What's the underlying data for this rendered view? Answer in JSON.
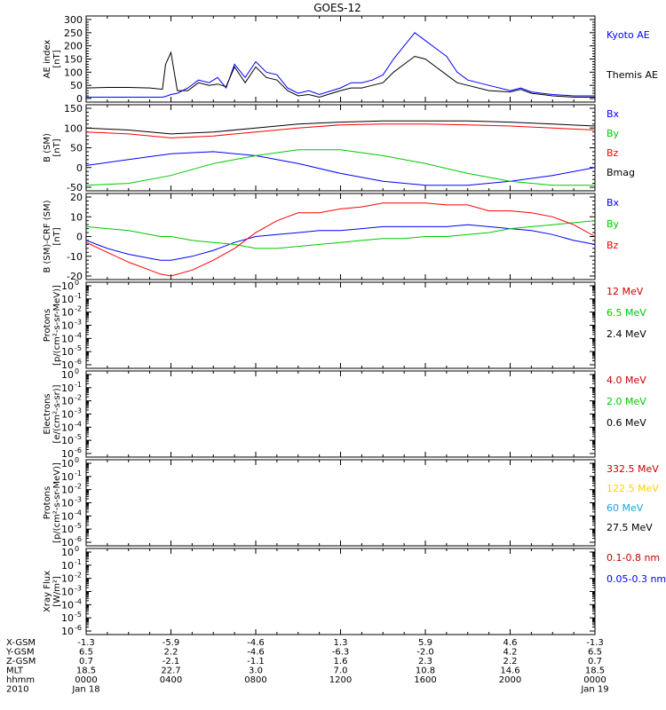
{
  "title": "GOES-12",
  "chart_data": [
    {
      "type": "line",
      "ylabel": "AE index [nT]",
      "ylim": [
        0,
        300
      ],
      "yticks": [
        0,
        50,
        100,
        150,
        200,
        250,
        300
      ],
      "log": false,
      "x_hours": [
        0,
        1,
        2,
        3,
        3.6,
        3.75,
        4,
        4.3,
        4.8,
        5.3,
        5.8,
        6.2,
        6.6,
        7,
        7.5,
        8,
        8.5,
        9,
        9.5,
        10,
        10.5,
        11,
        12,
        12.5,
        13,
        13.5,
        14,
        14.5,
        15,
        15.5,
        16,
        16.5,
        17,
        17.5,
        18,
        19,
        20,
        20.5,
        21,
        21.5,
        22,
        23,
        24
      ],
      "series": [
        {
          "name": "Kyoto AE",
          "color": "#0000ff",
          "values": [
            5,
            5,
            5,
            5,
            5,
            8,
            15,
            20,
            40,
            70,
            60,
            80,
            40,
            130,
            80,
            140,
            100,
            90,
            40,
            20,
            30,
            15,
            40,
            60,
            60,
            70,
            90,
            150,
            200,
            250,
            220,
            190,
            160,
            100,
            70,
            50,
            30,
            40,
            25,
            20,
            15,
            10,
            10
          ]
        },
        {
          "name": "Themis AE",
          "color": "#000000",
          "values": [
            40,
            42,
            42,
            40,
            35,
            130,
            175,
            30,
            30,
            60,
            50,
            55,
            45,
            120,
            60,
            120,
            80,
            70,
            30,
            10,
            15,
            5,
            30,
            40,
            40,
            50,
            60,
            100,
            130,
            160,
            150,
            120,
            90,
            60,
            50,
            30,
            25,
            35,
            20,
            15,
            10,
            5,
            5
          ]
        }
      ]
    },
    {
      "type": "line",
      "ylabel": "B (SM) [nT]",
      "ylim": [
        -50,
        150
      ],
      "yticks": [
        -50,
        0,
        50,
        100,
        150
      ],
      "log": false,
      "x_hours": [
        0,
        2,
        4,
        6,
        8,
        10,
        12,
        14,
        16,
        18,
        20,
        22,
        24
      ],
      "series": [
        {
          "name": "Bx",
          "color": "#0000ff",
          "values": [
            5,
            20,
            35,
            40,
            30,
            10,
            -15,
            -35,
            -45,
            -45,
            -35,
            -20,
            0
          ]
        },
        {
          "name": "By",
          "color": "#00c800",
          "values": [
            -45,
            -40,
            -20,
            10,
            30,
            45,
            45,
            30,
            10,
            -15,
            -35,
            -45,
            -45
          ]
        },
        {
          "name": "Bz",
          "color": "#ff0000",
          "values": [
            90,
            85,
            75,
            80,
            90,
            100,
            108,
            110,
            110,
            108,
            105,
            100,
            95
          ]
        },
        {
          "name": "Bmag",
          "color": "#000000",
          "values": [
            100,
            95,
            85,
            90,
            100,
            110,
            115,
            118,
            118,
            118,
            115,
            110,
            105
          ]
        }
      ]
    },
    {
      "type": "line",
      "ylabel": "B (SM)-CRF (SM) [nT]",
      "ylim": [
        -20,
        20
      ],
      "yticks": [
        -20,
        -10,
        0,
        10,
        20
      ],
      "log": false,
      "x_hours": [
        0,
        1,
        2,
        3,
        3.5,
        4,
        5,
        6,
        7,
        8,
        9,
        10,
        11,
        12,
        13,
        14,
        15,
        16,
        17,
        18,
        19,
        20,
        21,
        22,
        23,
        24
      ],
      "series": [
        {
          "name": "Bx",
          "color": "#0000ff",
          "values": [
            -2,
            -6,
            -9,
            -11,
            -12,
            -12,
            -10,
            -7,
            -3,
            0,
            1,
            2,
            3,
            3,
            4,
            5,
            5,
            5,
            5,
            6,
            5,
            4,
            3,
            1,
            -2,
            -4
          ]
        },
        {
          "name": "By",
          "color": "#00c800",
          "values": [
            5,
            4,
            3,
            1,
            0,
            0,
            -2,
            -3,
            -4,
            -6,
            -6,
            -5,
            -4,
            -3,
            -2,
            -1,
            -1,
            0,
            0,
            1,
            2,
            4,
            5,
            6,
            7,
            8
          ]
        },
        {
          "name": "Bz",
          "color": "#ff0000",
          "values": [
            -3,
            -8,
            -13,
            -17,
            -19,
            -20,
            -17,
            -12,
            -6,
            2,
            8,
            12,
            12,
            14,
            15,
            17,
            17,
            17,
            16,
            16,
            13,
            13,
            12,
            10,
            6,
            0
          ]
        }
      ]
    },
    {
      "type": "line",
      "ylabel": "Protons [p/(cm²-s-sr-MeV)]",
      "ylim": [
        -6,
        0
      ],
      "yticks_exp": [
        -6,
        -5,
        -4,
        -3,
        -2,
        -1,
        0
      ],
      "log": true,
      "series": [
        {
          "name": "12 MeV",
          "color": "#c80000",
          "values": []
        },
        {
          "name": "6.5 MeV",
          "color": "#00c800",
          "values": []
        },
        {
          "name": "2.4 MeV",
          "color": "#000000",
          "values": []
        }
      ]
    },
    {
      "type": "line",
      "ylabel": "Electrons [e/(cm²-s-sr)]",
      "ylim": [
        -6,
        0
      ],
      "yticks_exp": [
        -6,
        -5,
        -4,
        -3,
        -2,
        -1,
        0
      ],
      "log": true,
      "series": [
        {
          "name": "4.0 MeV",
          "color": "#c80000",
          "values": []
        },
        {
          "name": "2.0 MeV",
          "color": "#00c800",
          "values": []
        },
        {
          "name": "0.6 MeV",
          "color": "#000000",
          "values": []
        }
      ]
    },
    {
      "type": "line",
      "ylabel": "Protons [p/(cm²-s-sr-MeV)]",
      "ylim": [
        -6,
        0
      ],
      "yticks_exp": [
        -6,
        -5,
        -4,
        -3,
        -2,
        -1,
        0
      ],
      "log": true,
      "series": [
        {
          "name": "332.5 MeV",
          "color": "#c80000",
          "values": []
        },
        {
          "name": "122.5 MeV",
          "color": "#ffd200",
          "values": []
        },
        {
          "name": "60 MeV",
          "color": "#1ea0dc",
          "values": []
        },
        {
          "name": "27.5 MeV",
          "color": "#000000",
          "values": []
        }
      ]
    },
    {
      "type": "line",
      "ylabel": "Xray Flux [W/m²]",
      "ylim": [
        -6,
        0
      ],
      "yticks_exp": [
        -6,
        -5,
        -4,
        -3,
        -2,
        -1,
        0
      ],
      "log": true,
      "series": [
        {
          "name": "0.1-0.8 nm",
          "color": "#c80000",
          "values": []
        },
        {
          "name": "0.05-0.3 nm",
          "color": "#0000ff",
          "values": []
        }
      ]
    }
  ],
  "x_axis": {
    "hours": [
      0,
      4,
      8,
      12,
      16,
      20,
      24
    ],
    "rows": [
      {
        "label": "X-GSM",
        "values": [
          "-1.3",
          "-5.9",
          "-4.6",
          "1.3",
          "5.9",
          "4.6",
          "-1.3"
        ]
      },
      {
        "label": "Y-GSM",
        "values": [
          "6.5",
          "2.2",
          "-4.6",
          "-6.3",
          "-2.0",
          "4.2",
          "6.5"
        ]
      },
      {
        "label": "Z-GSM",
        "values": [
          "0.7",
          "-2.1",
          "-1.1",
          "1.6",
          "2.3",
          "2.2",
          "0.7"
        ]
      },
      {
        "label": "MLT",
        "values": [
          "18.5",
          "22.7",
          "3.0",
          "7.0",
          "10.8",
          "14.6",
          "18.5"
        ]
      },
      {
        "label": "hhmm",
        "values": [
          "0000",
          "0400",
          "0800",
          "1200",
          "1600",
          "2000",
          "0000"
        ]
      },
      {
        "label": "2010",
        "values": [
          "Jan 18",
          "",
          "",
          "",
          "",
          "",
          "Jan 19"
        ]
      }
    ]
  }
}
